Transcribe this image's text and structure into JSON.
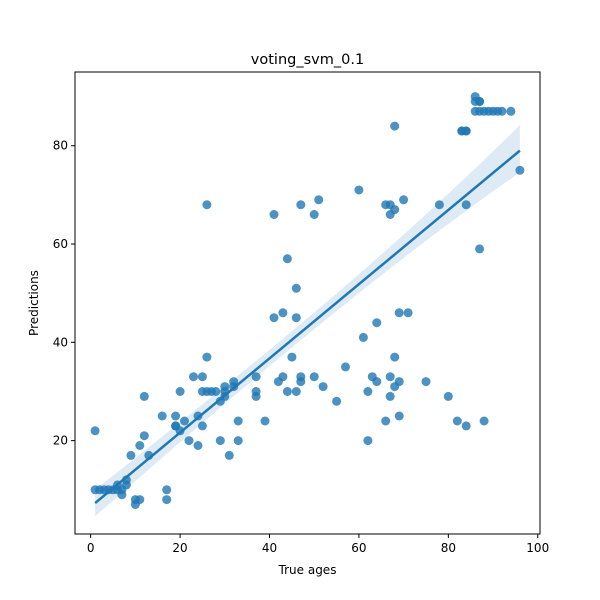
{
  "chart_data": {
    "type": "scatter",
    "title": "voting_svm_0.1",
    "xlabel": "True ages",
    "ylabel": "Predictions",
    "xlim": [
      -3.5,
      100.5
    ],
    "ylim": [
      1,
      95
    ],
    "xticks": [
      0,
      20,
      40,
      60,
      80,
      100
    ],
    "yticks": [
      20,
      40,
      60,
      80
    ],
    "grid": false,
    "colors": {
      "points": "#1f77b4",
      "line": "#1f77b4",
      "band": "#1f77b4"
    },
    "regression": {
      "x": [
        1,
        96
      ],
      "y": [
        7.3,
        79.0
      ],
      "ci_lower": [
        4.6,
        74.6
      ],
      "ci_upper": [
        10.0,
        84.2
      ]
    },
    "points": [
      [
        1,
        22
      ],
      [
        1,
        10
      ],
      [
        2,
        10
      ],
      [
        3,
        10
      ],
      [
        4,
        10
      ],
      [
        5,
        10
      ],
      [
        6,
        10
      ],
      [
        6,
        11
      ],
      [
        7,
        10
      ],
      [
        7,
        9
      ],
      [
        8,
        11
      ],
      [
        8,
        12
      ],
      [
        9,
        17
      ],
      [
        10,
        8
      ],
      [
        10,
        7
      ],
      [
        11,
        8
      ],
      [
        11,
        19
      ],
      [
        12,
        21
      ],
      [
        12,
        29
      ],
      [
        13,
        17
      ],
      [
        16,
        25
      ],
      [
        17,
        10
      ],
      [
        17,
        8
      ],
      [
        19,
        25
      ],
      [
        19,
        23
      ],
      [
        19,
        23
      ],
      [
        20,
        22
      ],
      [
        20,
        30
      ],
      [
        21,
        24
      ],
      [
        22,
        20
      ],
      [
        23,
        33
      ],
      [
        24,
        25
      ],
      [
        24,
        19
      ],
      [
        25,
        23
      ],
      [
        25,
        30
      ],
      [
        25,
        33
      ],
      [
        26,
        37
      ],
      [
        26,
        30
      ],
      [
        26,
        68
      ],
      [
        27,
        30
      ],
      [
        28,
        30
      ],
      [
        29,
        20
      ],
      [
        29,
        28
      ],
      [
        30,
        31
      ],
      [
        30,
        29
      ],
      [
        30,
        30
      ],
      [
        31,
        17
      ],
      [
        32,
        31
      ],
      [
        32,
        32
      ],
      [
        33,
        24
      ],
      [
        33,
        20
      ],
      [
        37,
        33
      ],
      [
        37,
        30
      ],
      [
        37,
        29
      ],
      [
        39,
        24
      ],
      [
        41,
        66
      ],
      [
        41,
        45
      ],
      [
        42,
        32
      ],
      [
        43,
        46
      ],
      [
        43,
        33
      ],
      [
        44,
        57
      ],
      [
        44,
        30
      ],
      [
        45,
        37
      ],
      [
        46,
        30
      ],
      [
        46,
        45
      ],
      [
        46,
        51
      ],
      [
        47,
        68
      ],
      [
        47,
        33
      ],
      [
        47,
        32
      ],
      [
        50,
        66
      ],
      [
        50,
        33
      ],
      [
        51,
        69
      ],
      [
        52,
        31
      ],
      [
        55,
        28
      ],
      [
        57,
        35
      ],
      [
        60,
        71
      ],
      [
        61,
        41
      ],
      [
        62,
        30
      ],
      [
        62,
        20
      ],
      [
        63,
        33
      ],
      [
        64,
        44
      ],
      [
        64,
        32
      ],
      [
        66,
        68
      ],
      [
        66,
        24
      ],
      [
        67,
        66
      ],
      [
        67,
        68
      ],
      [
        67,
        33
      ],
      [
        67,
        29
      ],
      [
        68,
        84
      ],
      [
        68,
        67
      ],
      [
        68,
        37
      ],
      [
        68,
        31
      ],
      [
        69,
        46
      ],
      [
        69,
        32
      ],
      [
        69,
        25
      ],
      [
        70,
        69
      ],
      [
        71,
        46
      ],
      [
        75,
        32
      ],
      [
        78,
        68
      ],
      [
        80,
        29
      ],
      [
        82,
        24
      ],
      [
        83,
        83
      ],
      [
        83,
        83
      ],
      [
        84,
        83
      ],
      [
        84,
        83
      ],
      [
        84,
        23
      ],
      [
        84,
        68
      ],
      [
        86,
        90
      ],
      [
        86,
        89
      ],
      [
        86,
        87
      ],
      [
        87,
        89
      ],
      [
        87,
        87
      ],
      [
        87,
        89
      ],
      [
        87,
        59
      ],
      [
        88,
        24
      ],
      [
        88,
        87
      ],
      [
        89,
        87
      ],
      [
        90,
        87
      ],
      [
        91,
        87
      ],
      [
        92,
        87
      ],
      [
        94,
        87
      ],
      [
        96,
        75
      ]
    ]
  }
}
